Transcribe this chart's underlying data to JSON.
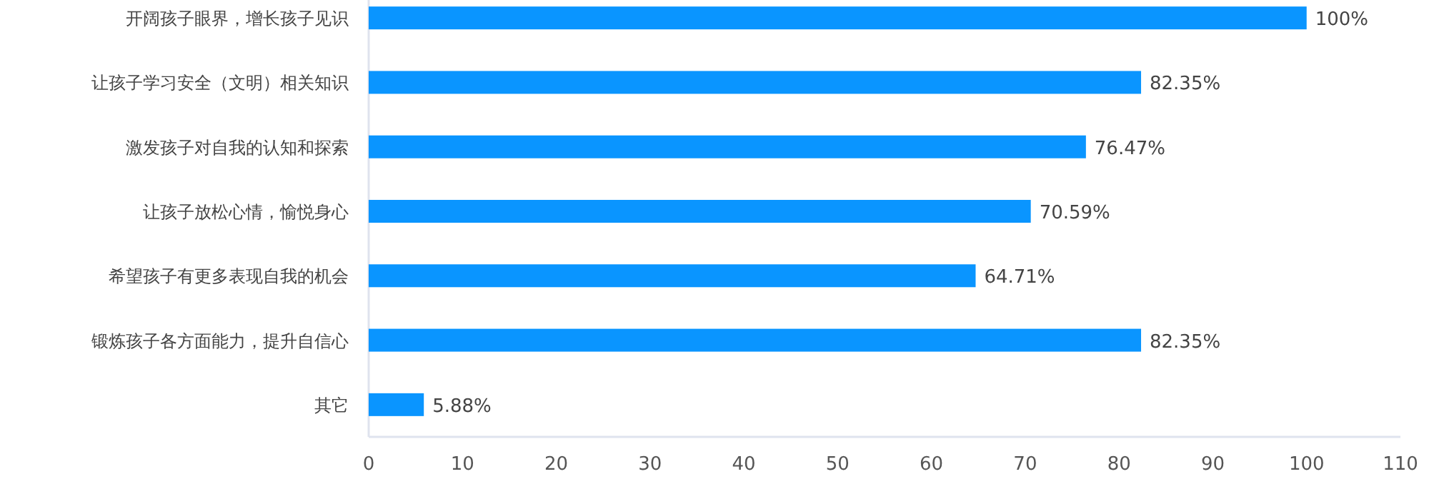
{
  "chart_data": {
    "type": "bar",
    "orientation": "horizontal",
    "categories": [
      "开阔孩子眼界，增长孩子见识",
      "让孩子学习安全（文明）相关知识",
      "激发孩子对自我的认知和探索",
      "让孩子放松心情，愉悦身心",
      "希望孩子有更多表现自我的机会",
      "锻炼孩子各方面能力，提升自信心",
      "其它"
    ],
    "values": [
      100,
      82.35,
      76.47,
      70.59,
      64.71,
      82.35,
      5.88
    ],
    "value_labels": [
      "100%",
      "82.35%",
      "76.47%",
      "70.59%",
      "64.71%",
      "82.35%",
      "5.88%"
    ],
    "color": "#0a95ff",
    "xlim": [
      0,
      110
    ],
    "xticks": [
      0,
      10,
      20,
      30,
      40,
      50,
      60,
      70,
      80,
      90,
      100,
      110
    ]
  }
}
